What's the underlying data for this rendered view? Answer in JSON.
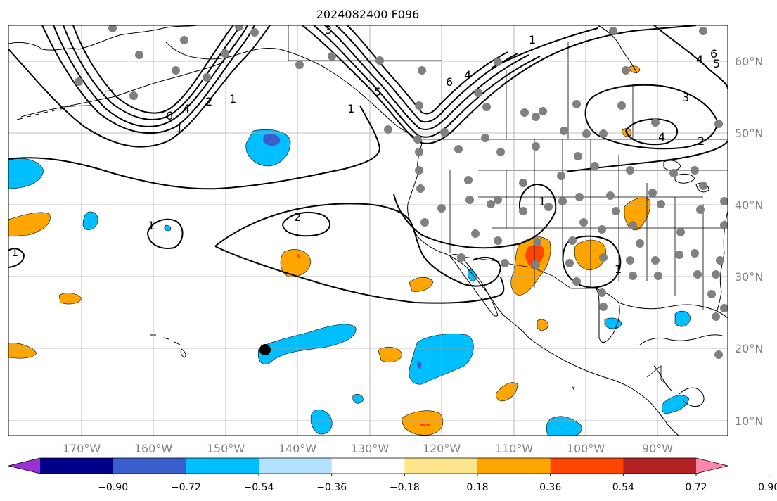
{
  "title": "2024082400 F096",
  "longitude_labels": [
    "170°W",
    "160°W",
    "150°W",
    "140°W",
    "130°W",
    "120°W",
    "110°W",
    "100°W",
    "90°W"
  ],
  "latitude_labels": [
    "60°N",
    "50°N",
    "40°N",
    "30°N",
    "20°N",
    "10°N"
  ],
  "colorbar": {
    "tick_labels": [
      "−0.90",
      "−0.72",
      "−0.54",
      "−0.36",
      "−0.18",
      "0.18",
      "0.36",
      "0.54",
      "0.72",
      "0.90"
    ],
    "colors": [
      "#9b30d0",
      "#00008b",
      "#3a5fcd",
      "#00bfff",
      "#b2e2ff",
      "#ffffff",
      "#fde68a",
      "#ffa500",
      "#ff4500",
      "#b22222",
      "#ff88aa"
    ]
  },
  "contour_labels": [
    "3",
    "6",
    "4",
    "2",
    "1",
    "1",
    "6",
    "4",
    "5",
    "1",
    "2",
    "1",
    "1",
    "1",
    "1",
    "1",
    "6",
    "4",
    "5",
    "3",
    "4",
    "2"
  ],
  "station_marker_color": "#808080"
}
